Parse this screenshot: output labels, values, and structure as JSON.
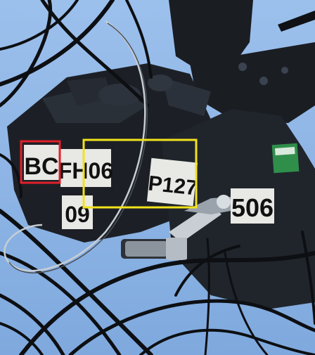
{
  "image": {
    "labels": {
      "bc": "BC",
      "fh06": "FH06",
      "p127": "P127",
      "l09": "09",
      "l506": "506"
    },
    "annotations": [
      {
        "name": "red-box",
        "color": "#e0202a"
      },
      {
        "name": "yellow-box",
        "color": "#f2e21c"
      }
    ],
    "colors": {
      "sky": "#8fb6e6",
      "equipment": "#1c2026",
      "cable": "#0d0f12",
      "label_bg": "#e8e8e4",
      "sticker_green": "#2f8f4a"
    }
  }
}
